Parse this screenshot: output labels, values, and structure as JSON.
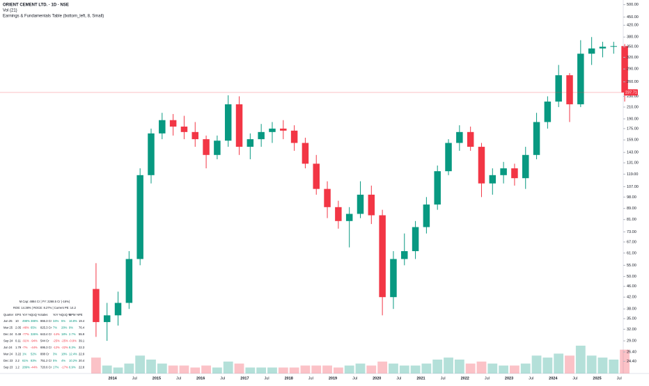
{
  "chart_data": {
    "type": "candlestick",
    "title": "ORIENT CEMENT LTD. · 1D · NSE",
    "volume_label": "Vol (21)",
    "indicator_label": "Earnings & Fundamentals Table (bottom_left, 8, Small)",
    "log_scale": true,
    "up_color": "#089981",
    "down_color": "#f23645",
    "categories": [
      null,
      null,
      "2014",
      null,
      "Jul",
      null,
      "2015",
      null,
      "Jul",
      null,
      "2016",
      null,
      "Jul",
      null,
      "2017",
      null,
      "Jul",
      null,
      "2018",
      null,
      "Jul",
      null,
      "2019",
      null,
      "Jul",
      null,
      "2020",
      null,
      "Jul",
      null,
      "2021",
      null,
      "Jul",
      null,
      "2022",
      null,
      "Jul",
      null,
      "2023",
      null,
      "Jul",
      null,
      "2024",
      null,
      "Jul",
      null,
      "2025",
      null,
      "Jul"
    ],
    "open": [
      45,
      34,
      36,
      40,
      58,
      118,
      168,
      188,
      178,
      170,
      160,
      140,
      158,
      215,
      150,
      160,
      170,
      175,
      172,
      155,
      130,
      105,
      90,
      80,
      85,
      100,
      84,
      42,
      58,
      62,
      76,
      92,
      122,
      155,
      170,
      150,
      110,
      118,
      125,
      115,
      140,
      185,
      220,
      275,
      215,
      330,
      345,
      350,
      352
    ],
    "high": [
      56,
      40,
      44,
      62,
      125,
      175,
      200,
      198,
      195,
      185,
      165,
      165,
      232,
      230,
      168,
      182,
      185,
      188,
      180,
      162,
      140,
      112,
      95,
      90,
      112,
      108,
      88,
      62,
      72,
      80,
      98,
      128,
      160,
      180,
      178,
      155,
      125,
      132,
      130,
      150,
      200,
      230,
      300,
      280,
      370,
      380,
      365,
      365,
      358
    ],
    "low": [
      30,
      29,
      33,
      38,
      55,
      110,
      160,
      165,
      160,
      150,
      125,
      135,
      150,
      140,
      135,
      150,
      155,
      160,
      145,
      125,
      100,
      82,
      75,
      64,
      82,
      78,
      36,
      38,
      55,
      58,
      72,
      88,
      118,
      145,
      145,
      98,
      100,
      110,
      108,
      105,
      135,
      175,
      210,
      185,
      210,
      300,
      320,
      330,
      220
    ],
    "close": [
      34,
      36,
      40,
      58,
      118,
      168,
      188,
      178,
      170,
      160,
      140,
      158,
      215,
      150,
      160,
      170,
      175,
      172,
      155,
      130,
      105,
      90,
      80,
      85,
      100,
      84,
      42,
      58,
      62,
      76,
      92,
      122,
      155,
      170,
      150,
      110,
      118,
      125,
      115,
      140,
      185,
      220,
      275,
      215,
      330,
      345,
      350,
      352,
      237.71
    ],
    "volume": [
      8,
      4,
      3,
      5,
      9,
      7,
      5,
      4,
      4,
      3,
      4,
      3,
      6,
      5,
      3,
      3,
      3,
      3,
      3,
      4,
      4,
      4,
      3,
      4,
      5,
      4,
      6,
      5,
      4,
      4,
      5,
      7,
      8,
      7,
      5,
      6,
      5,
      4,
      4,
      5,
      9,
      8,
      10,
      9,
      14,
      9,
      8,
      7,
      12
    ],
    "last_price": 237.71,
    "ylim": [
      22,
      520
    ],
    "yticks": [
      {
        "value": 500,
        "label": "500.00"
      },
      {
        "value": 450,
        "label": "450.00"
      },
      {
        "value": 420,
        "label": "420.00"
      },
      {
        "value": 380,
        "label": "380.00"
      },
      {
        "value": 350,
        "label": "350.00"
      },
      {
        "value": 320,
        "label": "320.00"
      },
      {
        "value": 290,
        "label": "290.00"
      },
      {
        "value": 260,
        "label": "260.00"
      },
      {
        "value": 230,
        "label": "230.00"
      },
      {
        "value": 210,
        "label": "210.00"
      },
      {
        "value": 190,
        "label": "190.00"
      },
      {
        "value": 175,
        "label": "175.00"
      },
      {
        "value": 159,
        "label": "159.00"
      },
      {
        "value": 143,
        "label": "143.00"
      },
      {
        "value": 131,
        "label": "131.00"
      },
      {
        "value": 119,
        "label": "119.00"
      },
      {
        "value": 107,
        "label": "107.00"
      },
      {
        "value": 98,
        "label": "98.00"
      },
      {
        "value": 89,
        "label": "89.00"
      },
      {
        "value": 81,
        "label": "81.00"
      },
      {
        "value": 73,
        "label": "73.00"
      },
      {
        "value": 67,
        "label": "67.00"
      },
      {
        "value": 61,
        "label": "61.00"
      },
      {
        "value": 55,
        "label": "55.00"
      },
      {
        "value": 50,
        "label": "50.00"
      },
      {
        "value": 46,
        "label": "46.00"
      },
      {
        "value": 42,
        "label": "42.00"
      },
      {
        "value": 38,
        "label": "38.00"
      },
      {
        "value": 35,
        "label": "35.00"
      },
      {
        "value": 32,
        "label": "32.00"
      },
      {
        "value": 29,
        "label": "29.00"
      },
      {
        "value": 26.4,
        "label": "26.40"
      },
      {
        "value": 24.4,
        "label": "24.40"
      }
    ]
  },
  "table": {
    "summary1": "M.Cap: 4884 Cr | FY: 2268.5 Cr (-16%)",
    "summary2": "ROE: 14.38% | ROCE: 8.27% | Current PE: 14.2",
    "header": [
      "Quarter",
      "EPS",
      "YoY %",
      "QoQ %",
      "Sales",
      "YoY %",
      "QoQ %",
      "OPM %",
      "PE"
    ],
    "rows": [
      [
        "Jun 25",
        "10",
        "498%",
        "388%",
        "866.3 Cr",
        "34%",
        "5%",
        "16.8%",
        "19.4"
      ],
      [
        "Mar 25",
        "2.05",
        "-48%",
        "65%",
        "825.3 Cr",
        "7%",
        "28%",
        "9%",
        "76.4"
      ],
      [
        "Dec 24",
        "0.49",
        "-77%",
        "326%",
        "643.4 Cr",
        "-14%",
        "18%",
        "2.7%",
        "55.9"
      ],
      [
        "Sep 24",
        "0.11",
        "-91%",
        "-94%",
        "544 Cr",
        "-25%",
        "-25%",
        "-0.9%",
        "39.1"
      ],
      [
        "Jun 24",
        "1.79",
        "-7%",
        "-44%",
        "695.3 Cr",
        "-12%",
        "-22%",
        "8.3%",
        "22.3"
      ],
      [
        "Mar 24",
        "3.22",
        "1%",
        "52%",
        "888 Cr",
        "3%",
        "18%",
        "12.4%",
        "22.9"
      ],
      [
        "Dec 23",
        "2.2",
        "61%",
        "83%",
        "751.2 Cr",
        "5%",
        "4%",
        "10.2%",
        "20.4"
      ],
      [
        "Sep 23",
        "1.2",
        "289%",
        "-44%",
        "720.6 Cr",
        "17%",
        "-17%",
        "6.9%",
        "22.8"
      ]
    ]
  }
}
